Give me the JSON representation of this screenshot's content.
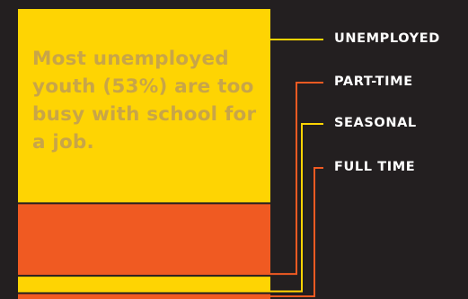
{
  "colors": {
    "background": "#231f20",
    "yellow": "#fed403",
    "orange": "#f05a22",
    "headline_text": "#c8a548",
    "legend_text": "#ffffff"
  },
  "headline": "Most unemployed youth (53%) are too busy with school for a job.",
  "chart_data": {
    "type": "bar",
    "stacked": true,
    "orientation": "vertical",
    "categories": [
      "Unemployed youth"
    ],
    "series": [
      {
        "name": "UNEMPLOYED",
        "values": [
          67
        ],
        "color": "#fed403"
      },
      {
        "name": "PART-TIME",
        "values": [
          25
        ],
        "color": "#f05a22"
      },
      {
        "name": "SEASONAL",
        "values": [
          6
        ],
        "color": "#fed403"
      },
      {
        "name": "FULL TIME",
        "values": [
          2
        ],
        "color": "#f05a22"
      }
    ],
    "legend": "right",
    "title": "",
    "xlabel": "",
    "ylabel": ""
  }
}
